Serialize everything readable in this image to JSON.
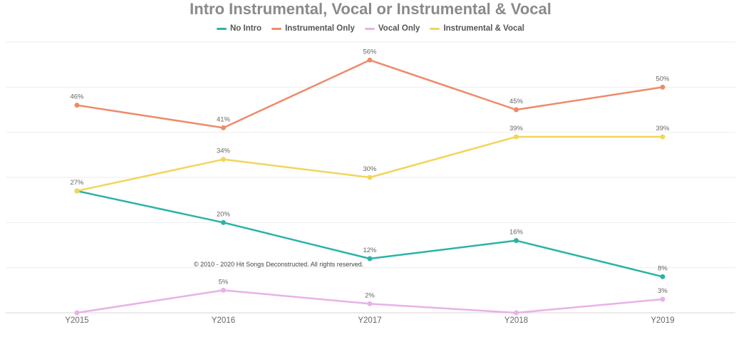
{
  "chart_data": {
    "type": "line",
    "title": "Intro Instrumental, Vocal or Instrumental & Vocal",
    "categories": [
      "Y2015",
      "Y2016",
      "Y2017",
      "Y2018",
      "Y2019"
    ],
    "ylim": [
      0,
      60
    ],
    "grid": true,
    "legend_position": "top-center",
    "series": [
      {
        "name": "No Intro",
        "color": "#2bb3a6",
        "values": [
          27,
          20,
          12,
          16,
          8
        ]
      },
      {
        "name": "Instrumental Only",
        "color": "#ee8a6a",
        "values": [
          46,
          41,
          56,
          45,
          50
        ]
      },
      {
        "name": "Vocal Only",
        "color": "#e9b1e6",
        "values": [
          0,
          5,
          2,
          0,
          3
        ]
      },
      {
        "name": "Instrumental & Vocal",
        "color": "#f2d55a",
        "values": [
          27,
          34,
          30,
          39,
          39
        ]
      }
    ],
    "data_labels": [
      {
        "series": "No Intro",
        "labels": [
          "",
          "20%",
          "12%",
          "16%",
          "8%"
        ]
      },
      {
        "series": "Instrumental Only",
        "labels": [
          "46%",
          "41%",
          "56%",
          "45%",
          "50%"
        ]
      },
      {
        "series": "Vocal Only",
        "labels": [
          "",
          "5%",
          "2%",
          "",
          "3%"
        ]
      },
      {
        "series": "Instrumental & Vocal",
        "labels": [
          "27%",
          "34%",
          "30%",
          "39%",
          "39%"
        ]
      }
    ]
  },
  "watermark": "© 2010 - 2020 Hit Songs Deconstructed. All rights reserved."
}
